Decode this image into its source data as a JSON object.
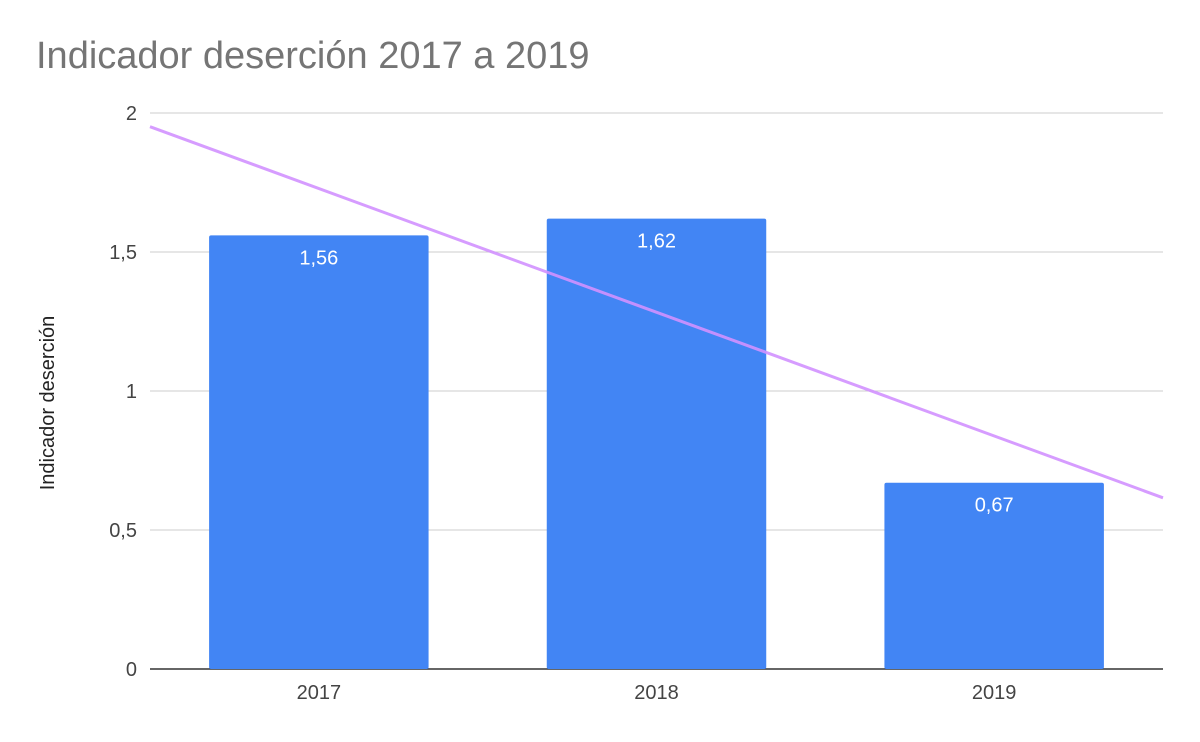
{
  "chart_data": {
    "type": "bar",
    "title": "Indicador deserción 2017 a 2019",
    "xlabel": "",
    "ylabel": "Indicador deserción",
    "categories": [
      "2017",
      "2018",
      "2019"
    ],
    "series": [
      {
        "values": [
          1.56,
          1.62,
          0.67
        ],
        "data_labels": [
          "1,56",
          "1,62",
          "0,67"
        ],
        "color": "#4285F4"
      }
    ],
    "trendline": {
      "type": "linear",
      "color": "#D291FF"
    },
    "ylim": [
      0,
      2
    ],
    "yticks": [
      0,
      0.5,
      1,
      1.5,
      2
    ],
    "ytick_labels": [
      "0",
      "0,5",
      "1",
      "1,5",
      "2"
    ],
    "grid": true,
    "legend": "none"
  }
}
